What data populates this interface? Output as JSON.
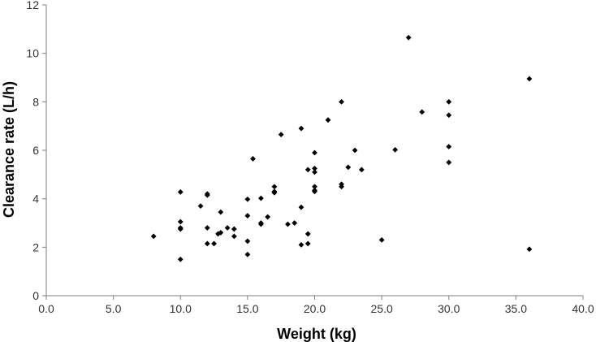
{
  "chart_data": {
    "type": "scatter",
    "title": "",
    "xlabel": "Weight (kg)",
    "ylabel": "Clearance rate (L/h)",
    "xlim": [
      0,
      40
    ],
    "ylim": [
      0,
      12
    ],
    "x_ticks": [
      "0.0",
      "5.0",
      "10.0",
      "15.0",
      "20.0",
      "25.0",
      "30.0",
      "35.0",
      "40.0"
    ],
    "y_ticks": [
      "0",
      "2",
      "4",
      "6",
      "8",
      "10",
      "12"
    ],
    "grid": false,
    "legend": "none",
    "marker": "diamond",
    "marker_color": "#000000",
    "axis_color": "#7f7f7f",
    "series": [
      {
        "points": [
          [
            8.0,
            2.45
          ],
          [
            10.0,
            1.5
          ],
          [
            10.0,
            2.75
          ],
          [
            10.0,
            2.8
          ],
          [
            10.0,
            3.05
          ],
          [
            10.0,
            4.28
          ],
          [
            11.5,
            3.7
          ],
          [
            12.0,
            2.15
          ],
          [
            12.0,
            2.8
          ],
          [
            12.0,
            4.15
          ],
          [
            12.0,
            4.2
          ],
          [
            12.5,
            2.15
          ],
          [
            12.8,
            2.55
          ],
          [
            13.0,
            2.6
          ],
          [
            13.0,
            3.45
          ],
          [
            13.5,
            2.8
          ],
          [
            14.0,
            2.45
          ],
          [
            14.0,
            2.75
          ],
          [
            15.0,
            1.7
          ],
          [
            15.0,
            2.25
          ],
          [
            15.0,
            3.3
          ],
          [
            15.0,
            3.98
          ],
          [
            15.4,
            5.65
          ],
          [
            16.0,
            2.95
          ],
          [
            16.0,
            3.0
          ],
          [
            16.0,
            4.02
          ],
          [
            16.5,
            3.25
          ],
          [
            17.0,
            4.25
          ],
          [
            17.0,
            4.3
          ],
          [
            17.0,
            4.5
          ],
          [
            17.5,
            6.65
          ],
          [
            18.0,
            2.95
          ],
          [
            18.5,
            3.0
          ],
          [
            19.0,
            2.1
          ],
          [
            19.0,
            3.65
          ],
          [
            19.0,
            6.9
          ],
          [
            19.5,
            2.15
          ],
          [
            19.5,
            2.55
          ],
          [
            19.5,
            5.2
          ],
          [
            20.0,
            4.3
          ],
          [
            20.0,
            4.35
          ],
          [
            20.0,
            4.5
          ],
          [
            20.0,
            5.1
          ],
          [
            20.0,
            5.25
          ],
          [
            20.0,
            5.9
          ],
          [
            21.0,
            7.25
          ],
          [
            22.0,
            4.5
          ],
          [
            22.0,
            4.6
          ],
          [
            22.0,
            8.0
          ],
          [
            22.5,
            5.3
          ],
          [
            23.0,
            6.0
          ],
          [
            23.5,
            5.2
          ],
          [
            25.0,
            2.3
          ],
          [
            26.0,
            6.02
          ],
          [
            27.0,
            10.65
          ],
          [
            28.0,
            7.58
          ],
          [
            30.0,
            5.5
          ],
          [
            30.0,
            6.15
          ],
          [
            30.0,
            7.45
          ],
          [
            30.0,
            8.0
          ],
          [
            36.0,
            1.92
          ],
          [
            36.0,
            8.95
          ]
        ]
      }
    ]
  }
}
